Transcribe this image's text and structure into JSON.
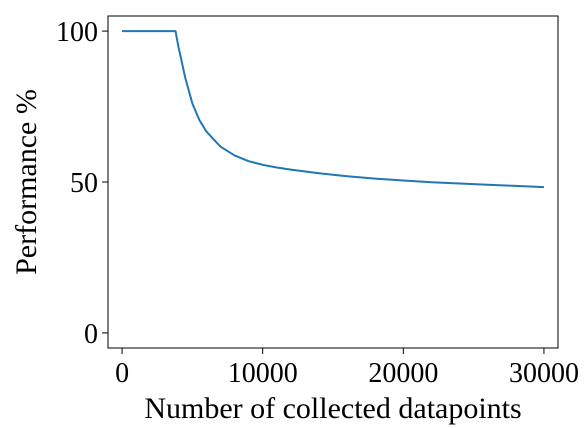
{
  "chart_data": {
    "type": "line",
    "title": "",
    "xlabel": "Number of collected datapoints",
    "ylabel": "Performance %",
    "xlim": [
      -1000,
      31000
    ],
    "ylim": [
      -5,
      105
    ],
    "xticks": [
      0,
      10000,
      20000,
      30000
    ],
    "xtick_labels": [
      "0",
      "10000",
      "20000",
      "30000"
    ],
    "yticks": [
      0,
      50,
      100
    ],
    "ytick_labels": [
      "0",
      "50",
      "100"
    ],
    "grid": false,
    "legend": "none",
    "series": [
      {
        "color": "#1f77b4",
        "x": [
          0,
          1000,
          2000,
          3000,
          3800,
          4000,
          4500,
          5000,
          5500,
          6000,
          7000,
          8000,
          9000,
          10000,
          11000,
          12000,
          14000,
          16000,
          18000,
          20000,
          22000,
          24000,
          26000,
          28000,
          30000
        ],
        "y": [
          100,
          100,
          100,
          100,
          100,
          95.0,
          84.4,
          76.0,
          70.5,
          66.7,
          61.7,
          58.8,
          56.9,
          55.7,
          54.8,
          54.1,
          52.9,
          51.9,
          51.1,
          50.5,
          49.9,
          49.5,
          49.1,
          48.7,
          48.3
        ]
      }
    ]
  }
}
